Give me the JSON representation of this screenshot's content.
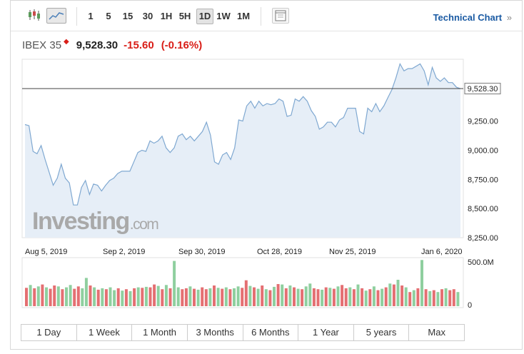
{
  "toolbar": {
    "intervals": [
      "1",
      "5",
      "15",
      "30",
      "1H",
      "5H",
      "1D",
      "1W",
      "1M"
    ],
    "active_interval": "1D",
    "technical_chart_label": "Technical Chart",
    "technical_chart_icon": "double-chevron-right-icon"
  },
  "quote": {
    "name": "IBEX 35",
    "price": "9,528.30",
    "change": "-15.60",
    "change_pct": "(-0.16%)",
    "direction_icon": "down-arrow-icon",
    "down_color": "#d91e18"
  },
  "watermark": {
    "brand": "Investing",
    "suffix": ".com"
  },
  "chart_data": {
    "type": "area",
    "x_ticks": [
      "Aug 5, 2019",
      "Sep 2, 2019",
      "Sep 30, 2019",
      "Oct 28, 2019",
      "Nov 25, 2019",
      "Jan 6, 2020"
    ],
    "y_ticks": [
      "9,250.00",
      "9,000.00",
      "8,750.00",
      "8,500.00",
      "8,250.00"
    ],
    "ylim": [
      8250,
      9780
    ],
    "last_price_label": "9,528.30",
    "last_price": 9528.3,
    "line_color": "#7fa8d1",
    "fill_color": "#e6eef7",
    "values": [
      9220,
      9210,
      8990,
      8970,
      9040,
      8920,
      8810,
      8700,
      8760,
      8880,
      8760,
      8720,
      8530,
      8530,
      8680,
      8740,
      8620,
      8710,
      8700,
      8650,
      8700,
      8740,
      8760,
      8800,
      8820,
      8820,
      8820,
      8900,
      8980,
      9000,
      8990,
      9080,
      9060,
      9080,
      9120,
      9020,
      8980,
      9020,
      9120,
      9140,
      9090,
      9120,
      9080,
      9120,
      9160,
      9240,
      9130,
      8900,
      8880,
      8960,
      8980,
      8920,
      9020,
      9260,
      9250,
      9380,
      9420,
      9360,
      9420,
      9380,
      9400,
      9390,
      9400,
      9440,
      9420,
      9290,
      9300,
      9440,
      9420,
      9460,
      9420,
      9340,
      9290,
      9180,
      9200,
      9240,
      9240,
      9200,
      9260,
      9280,
      9360,
      9360,
      9360,
      9160,
      9140,
      9360,
      9330,
      9400,
      9330,
      9380,
      9450,
      9520,
      9620,
      9740,
      9680,
      9700,
      9700,
      9720,
      9740,
      9680,
      9560,
      9710,
      9620,
      9590,
      9620,
      9580,
      9580,
      9540,
      9528
    ],
    "volume": {
      "axis_labels": [
        "500.0M",
        "0"
      ],
      "up_color": "#8fcf9f",
      "down_color": "#e46f72",
      "bars": [
        [
          0.39,
          "d"
        ],
        [
          0.45,
          "u"
        ],
        [
          0.38,
          "d"
        ],
        [
          0.42,
          "u"
        ],
        [
          0.46,
          "d"
        ],
        [
          0.4,
          "u"
        ],
        [
          0.37,
          "d"
        ],
        [
          0.44,
          "d"
        ],
        [
          0.42,
          "u"
        ],
        [
          0.36,
          "d"
        ],
        [
          0.4,
          "u"
        ],
        [
          0.45,
          "u"
        ],
        [
          0.37,
          "d"
        ],
        [
          0.42,
          "d"
        ],
        [
          0.38,
          "u"
        ],
        [
          0.6,
          "u"
        ],
        [
          0.44,
          "d"
        ],
        [
          0.4,
          "u"
        ],
        [
          0.35,
          "d"
        ],
        [
          0.38,
          "u"
        ],
        [
          0.36,
          "d"
        ],
        [
          0.4,
          "u"
        ],
        [
          0.34,
          "u"
        ],
        [
          0.38,
          "d"
        ],
        [
          0.33,
          "u"
        ],
        [
          0.36,
          "d"
        ],
        [
          0.32,
          "u"
        ],
        [
          0.38,
          "d"
        ],
        [
          0.4,
          "u"
        ],
        [
          0.39,
          "d"
        ],
        [
          0.41,
          "u"
        ],
        [
          0.4,
          "d"
        ],
        [
          0.46,
          "d"
        ],
        [
          0.43,
          "u"
        ],
        [
          0.36,
          "d"
        ],
        [
          0.45,
          "u"
        ],
        [
          0.38,
          "d"
        ],
        [
          0.96,
          "u"
        ],
        [
          0.4,
          "u"
        ],
        [
          0.36,
          "d"
        ],
        [
          0.38,
          "d"
        ],
        [
          0.42,
          "u"
        ],
        [
          0.37,
          "d"
        ],
        [
          0.35,
          "u"
        ],
        [
          0.4,
          "d"
        ],
        [
          0.36,
          "d"
        ],
        [
          0.38,
          "u"
        ],
        [
          0.44,
          "d"
        ],
        [
          0.39,
          "u"
        ],
        [
          0.37,
          "d"
        ],
        [
          0.4,
          "u"
        ],
        [
          0.36,
          "d"
        ],
        [
          0.38,
          "u"
        ],
        [
          0.42,
          "u"
        ],
        [
          0.39,
          "d"
        ],
        [
          0.55,
          "d"
        ],
        [
          0.43,
          "u"
        ],
        [
          0.4,
          "d"
        ],
        [
          0.37,
          "u"
        ],
        [
          0.44,
          "d"
        ],
        [
          0.36,
          "u"
        ],
        [
          0.34,
          "d"
        ],
        [
          0.41,
          "u"
        ],
        [
          0.47,
          "d"
        ],
        [
          0.46,
          "u"
        ],
        [
          0.38,
          "d"
        ],
        [
          0.44,
          "u"
        ],
        [
          0.4,
          "d"
        ],
        [
          0.37,
          "u"
        ],
        [
          0.36,
          "d"
        ],
        [
          0.42,
          "u"
        ],
        [
          0.48,
          "u"
        ],
        [
          0.38,
          "d"
        ],
        [
          0.36,
          "d"
        ],
        [
          0.35,
          "u"
        ],
        [
          0.4,
          "d"
        ],
        [
          0.39,
          "u"
        ],
        [
          0.37,
          "d"
        ],
        [
          0.42,
          "u"
        ],
        [
          0.45,
          "d"
        ],
        [
          0.38,
          "d"
        ],
        [
          0.4,
          "u"
        ],
        [
          0.36,
          "d"
        ],
        [
          0.46,
          "u"
        ],
        [
          0.38,
          "d"
        ],
        [
          0.33,
          "u"
        ],
        [
          0.36,
          "d"
        ],
        [
          0.42,
          "u"
        ],
        [
          0.34,
          "d"
        ],
        [
          0.37,
          "u"
        ],
        [
          0.4,
          "d"
        ],
        [
          0.48,
          "u"
        ],
        [
          0.46,
          "d"
        ],
        [
          0.56,
          "u"
        ],
        [
          0.44,
          "d"
        ],
        [
          0.4,
          "u"
        ],
        [
          0.3,
          "d"
        ],
        [
          0.34,
          "u"
        ],
        [
          0.38,
          "d"
        ],
        [
          0.98,
          "u"
        ],
        [
          0.36,
          "d"
        ],
        [
          0.32,
          "u"
        ],
        [
          0.34,
          "d"
        ],
        [
          0.3,
          "u"
        ],
        [
          0.36,
          "d"
        ],
        [
          0.38,
          "u"
        ],
        [
          0.34,
          "d"
        ],
        [
          0.36,
          "d"
        ],
        [
          0.3,
          "u"
        ]
      ]
    }
  },
  "periods": [
    "1 Day",
    "1 Week",
    "1 Month",
    "3 Months",
    "6 Months",
    "1 Year",
    "5 years",
    "Max"
  ]
}
